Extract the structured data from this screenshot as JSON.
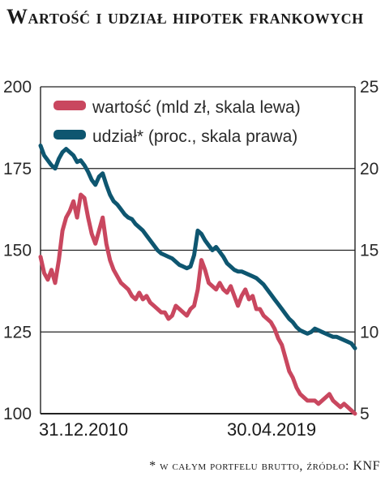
{
  "title": "Wartość i udział hipotek frankowych",
  "footnote": "* w całym portfelu brutto, źródło: KNF",
  "colors": {
    "wartosc": "#c9475f",
    "udzial": "#0e5670",
    "grid": "#222222",
    "text": "#2a2a2a"
  },
  "chart_data": {
    "type": "line",
    "title": "Wartość i udział hipotek frankowych",
    "x_labels": [
      "31.12.2010",
      "30.04.2019"
    ],
    "y_left": {
      "ylim": [
        100,
        200
      ],
      "ticks": [
        "100",
        "125",
        "150",
        "175",
        "200"
      ]
    },
    "y_right": {
      "ylim": [
        5,
        25
      ],
      "ticks": [
        "5",
        "10",
        "15",
        "20",
        "25"
      ]
    },
    "grid": true,
    "legend_position": "top",
    "series": [
      {
        "name": "wartość (mld zł, skala lewa)",
        "axis": "left",
        "color": "#c9475f",
        "values": [
          148,
          143,
          141,
          144,
          140,
          147,
          156,
          160,
          162,
          165,
          160,
          167,
          166,
          160,
          155,
          152,
          156,
          160,
          152,
          147,
          144,
          142,
          140,
          139,
          138,
          136,
          135,
          137,
          135,
          136,
          134,
          133,
          132,
          131,
          131,
          129,
          130,
          133,
          132,
          131,
          130,
          132,
          133,
          138,
          147,
          144,
          140,
          139,
          138,
          140,
          138,
          137,
          139,
          136,
          133,
          136,
          138,
          135,
          136,
          132,
          132,
          130,
          129,
          128,
          126,
          123,
          121,
          117,
          113,
          111,
          108,
          106,
          105,
          104,
          104,
          104,
          103,
          104,
          105,
          106,
          104,
          103,
          102,
          103,
          102,
          101,
          100
        ]
      },
      {
        "name": "udział* (proc., skala prawa)",
        "axis": "right",
        "color": "#0e5670",
        "values": [
          21.4,
          20.8,
          20.5,
          20.2,
          20.0,
          20.6,
          21.0,
          21.2,
          21.0,
          20.8,
          20.4,
          20.5,
          20.2,
          19.8,
          19.3,
          19.0,
          19.5,
          19.7,
          19.0,
          18.4,
          18.0,
          17.8,
          17.5,
          17.2,
          17.0,
          16.9,
          16.6,
          16.4,
          16.2,
          15.9,
          15.6,
          15.3,
          15.0,
          14.8,
          14.7,
          14.6,
          14.5,
          14.3,
          14.1,
          14.0,
          13.9,
          14.0,
          14.7,
          16.2,
          16.0,
          15.6,
          15.3,
          15.0,
          15.2,
          14.9,
          14.6,
          14.2,
          14.0,
          13.8,
          13.7,
          13.7,
          13.6,
          13.5,
          13.4,
          13.3,
          13.1,
          12.9,
          12.6,
          12.3,
          12.0,
          11.7,
          11.4,
          11.1,
          10.8,
          10.6,
          10.3,
          10.1,
          10.0,
          9.9,
          10.0,
          10.2,
          10.1,
          10.0,
          9.9,
          9.8,
          9.7,
          9.7,
          9.6,
          9.5,
          9.4,
          9.3,
          9.0
        ]
      }
    ]
  }
}
